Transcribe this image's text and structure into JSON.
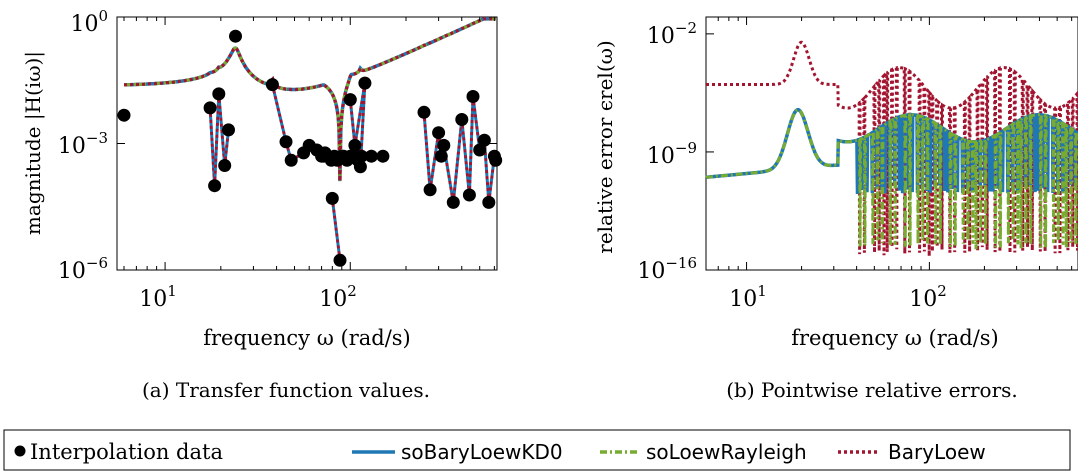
{
  "colors": {
    "interp": "#000000",
    "kd0": "#1f77b4",
    "rayleigh": "#77ac30",
    "bary": "#a2142f"
  },
  "panel_a": {
    "ylabel": "magnitude |H(iω)|",
    "xlabel": "frequency ω (rad/s)",
    "caption": "(a) Transfer function values.",
    "xticks": [
      "10",
      "10"
    ],
    "xtick_exps": [
      "1",
      "2"
    ],
    "yticks": [
      "10",
      "10",
      "10"
    ],
    "ytick_exps": [
      "0",
      "−3",
      "−6"
    ]
  },
  "panel_b": {
    "ylabel": "relative error ϵrel(ω)",
    "xlabel": "frequency ω (rad/s)",
    "caption": "(b) Pointwise relative errors.",
    "xticks": [
      "10",
      "10"
    ],
    "xtick_exps": [
      "1",
      "2"
    ],
    "yticks": [
      "10",
      "10",
      "10"
    ],
    "ytick_exps": [
      "−2",
      "−9",
      "−16"
    ]
  },
  "legend": {
    "items": [
      {
        "label": "Interpolation data"
      },
      {
        "label": "soBaryLoewKD0"
      },
      {
        "label": "soLoewRayleigh"
      },
      {
        "label": "BaryLoew"
      }
    ]
  },
  "chart_data": [
    {
      "type": "line",
      "title": "(a) Transfer function values.",
      "xlabel": "frequency ω (rad/s)",
      "ylabel": "magnitude |H(iω)|",
      "xscale": "log",
      "yscale": "log",
      "xlim": [
        5.5,
        620
      ],
      "ylim": [
        1e-06,
        1
      ],
      "grid": false,
      "series": [
        {
          "name": "Interpolation data",
          "x": [
            6,
            24,
            17.5,
            18.5,
            19.5,
            21,
            22,
            100,
            106,
            120,
            113.5,
            88,
            80,
            38,
            45,
            48,
            56,
            60,
            66,
            70,
            72,
            73,
            79,
            82,
            85,
            90,
            92,
            96,
            100,
            105,
            110,
            115,
            130,
            150,
            250,
            270,
            300,
            310,
            320,
            360,
            400,
            440,
            460,
            500,
            530,
            560,
            600,
            610
          ],
          "y": [
            0.0047,
            0.35,
            0.007,
            0.0001,
            0.015,
            0.0003,
            0.0021,
            0.011,
            0.0009,
            0.027,
            0.00028,
            1.7e-06,
            5e-05,
            0.025,
            0.0011,
            0.0004,
            0.0006,
            0.0009,
            0.0007,
            0.0005,
            0.0005,
            0.0006,
            0.0004,
            0.0005,
            0.0004,
            0.0005,
            0.0005,
            0.0004,
            0.0005,
            0.0005,
            0.0004,
            0.0005,
            0.0005,
            0.0005,
            0.0055,
            8e-05,
            0.0018,
            0.0005,
            0.0009,
            4e-05,
            0.0037,
            6e-05,
            0.013,
            0.0007,
            0.0012,
            4e-05,
            0.0005,
            0.0004
          ]
        },
        {
          "name": "soBaryLoewKD0"
        },
        {
          "name": "soLoewRayleigh"
        },
        {
          "name": "BaryLoew"
        }
      ]
    },
    {
      "type": "line",
      "title": "(b) Pointwise relative errors.",
      "xlabel": "frequency ω (rad/s)",
      "ylabel": "relative error ϵrel(ω)",
      "xscale": "log",
      "yscale": "log",
      "xlim": [
        6,
        650
      ],
      "ylim": [
        1e-16,
        0.1
      ],
      "grid": false,
      "series": [
        {
          "name": "soBaryLoewKD0"
        },
        {
          "name": "soLoewRayleigh"
        },
        {
          "name": "BaryLoew"
        }
      ]
    }
  ]
}
